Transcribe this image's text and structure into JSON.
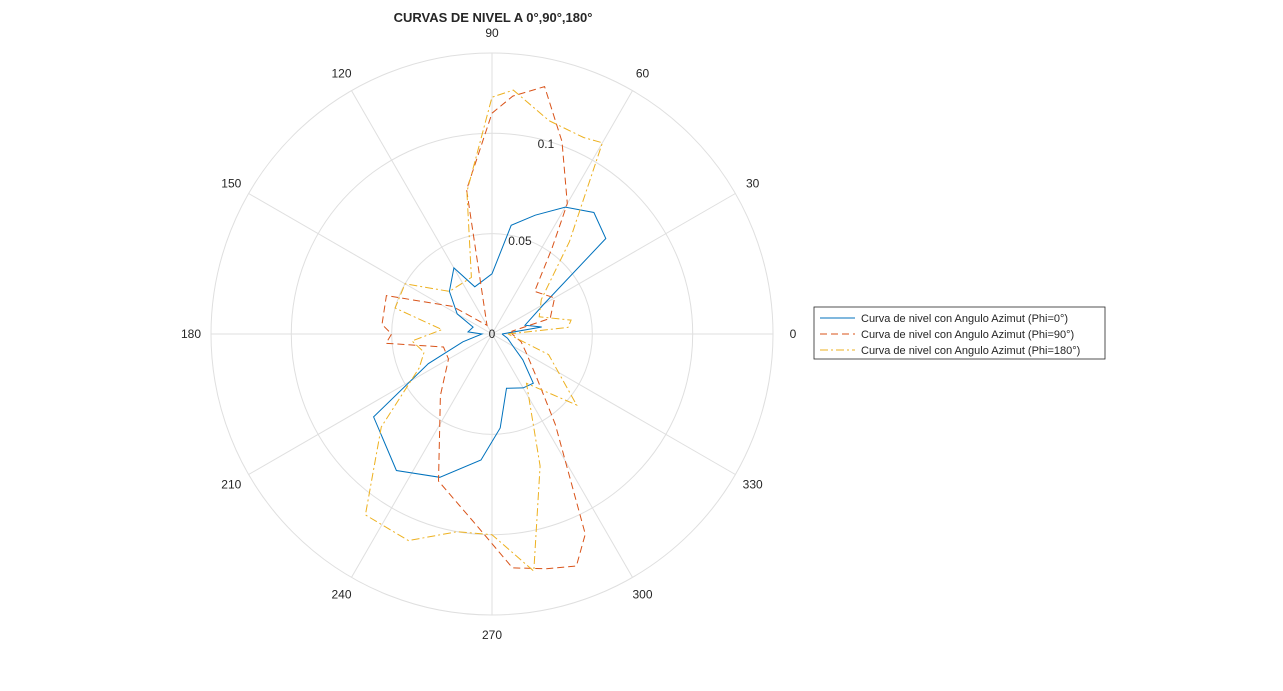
{
  "chart_data": {
    "type": "polar-line",
    "title": "CURVAS DE NIVEL A 0°,90°,180°",
    "theta_ticks": [
      "0",
      "30",
      "60",
      "90",
      "120",
      "150",
      "180",
      "210",
      "240",
      "270",
      "300",
      "330"
    ],
    "theta_tick_values": [
      0,
      30,
      60,
      90,
      120,
      150,
      180,
      210,
      240,
      270,
      300,
      330
    ],
    "r_ticks": [
      0,
      0.05,
      0.1
    ],
    "r_tick_labels": [
      "0",
      "0.05",
      "0.1"
    ],
    "rlim": [
      0,
      0.14
    ],
    "grid": true,
    "legend_location": "east-outside",
    "series": [
      {
        "name": "Curva de nivel con Angulo Azimut (Phi=0°)",
        "color": "#0072BD",
        "dash": "solid",
        "points": [
          [
            0,
            0.005
          ],
          [
            8,
            0.025
          ],
          [
            15,
            0.017
          ],
          [
            30,
            0.03
          ],
          [
            40,
            0.074
          ],
          [
            50,
            0.079
          ],
          [
            60,
            0.073
          ],
          [
            70,
            0.063
          ],
          [
            80,
            0.055
          ],
          [
            90,
            0.03
          ],
          [
            110,
            0.025
          ],
          [
            120,
            0.038
          ],
          [
            135,
            0.03
          ],
          [
            150,
            0.02
          ],
          [
            160,
            0.01
          ],
          [
            175,
            0.012
          ],
          [
            180,
            0.005
          ],
          [
            195,
            0.015
          ],
          [
            205,
            0.035
          ],
          [
            215,
            0.072
          ],
          [
            235,
            0.083
          ],
          [
            250,
            0.076
          ],
          [
            265,
            0.063
          ],
          [
            275,
            0.047
          ],
          [
            285,
            0.028
          ],
          [
            300,
            0.031
          ],
          [
            310,
            0.032
          ],
          [
            320,
            0.02
          ],
          [
            330,
            0.012
          ],
          [
            345,
            0.008
          ],
          [
            360,
            0.005
          ]
        ]
      },
      {
        "name": "Curva de nivel con Angulo Azimut (Phi=90°)",
        "color": "#D95319",
        "dash": "7,4",
        "points": [
          [
            0,
            0.01
          ],
          [
            8,
            0.01
          ],
          [
            15,
            0.03
          ],
          [
            30,
            0.036
          ],
          [
            45,
            0.03
          ],
          [
            55,
            0.052
          ],
          [
            60,
            0.075
          ],
          [
            70,
            0.102
          ],
          [
            78,
            0.126
          ],
          [
            85,
            0.119
          ],
          [
            90,
            0.11
          ],
          [
            100,
            0.073
          ],
          [
            120,
            0.005
          ],
          [
            145,
            0.024
          ],
          [
            160,
            0.056
          ],
          [
            175,
            0.055
          ],
          [
            180,
            0.05
          ],
          [
            185,
            0.053
          ],
          [
            195,
            0.025
          ],
          [
            210,
            0.025
          ],
          [
            230,
            0.04
          ],
          [
            250,
            0.078
          ],
          [
            265,
            0.095
          ],
          [
            275,
            0.117
          ],
          [
            283,
            0.12
          ],
          [
            290,
            0.123
          ],
          [
            295,
            0.11
          ],
          [
            305,
            0.055
          ],
          [
            315,
            0.032
          ],
          [
            330,
            0.02
          ],
          [
            345,
            0.015
          ],
          [
            360,
            0.01
          ]
        ]
      },
      {
        "name": "Curva de nivel con Angulo Azimut (Phi=180°)",
        "color": "#EDB120",
        "dash": "8,3,2,3",
        "points": [
          [
            0,
            0.008
          ],
          [
            5,
            0.038
          ],
          [
            10,
            0.04
          ],
          [
            20,
            0.025
          ],
          [
            35,
            0.03
          ],
          [
            50,
            0.06
          ],
          [
            60,
            0.11
          ],
          [
            65,
            0.108
          ],
          [
            75,
            0.11
          ],
          [
            85,
            0.122
          ],
          [
            90,
            0.118
          ],
          [
            100,
            0.072
          ],
          [
            110,
            0.03
          ],
          [
            135,
            0.03
          ],
          [
            150,
            0.05
          ],
          [
            165,
            0.05
          ],
          [
            175,
            0.025
          ],
          [
            185,
            0.04
          ],
          [
            195,
            0.035
          ],
          [
            205,
            0.04
          ],
          [
            220,
            0.072
          ],
          [
            235,
            0.11
          ],
          [
            248,
            0.111
          ],
          [
            260,
            0.1
          ],
          [
            270,
            0.1
          ],
          [
            280,
            0.12
          ],
          [
            290,
            0.07
          ],
          [
            305,
            0.03
          ],
          [
            320,
            0.055
          ],
          [
            340,
            0.03
          ],
          [
            360,
            0.008
          ]
        ]
      }
    ]
  }
}
